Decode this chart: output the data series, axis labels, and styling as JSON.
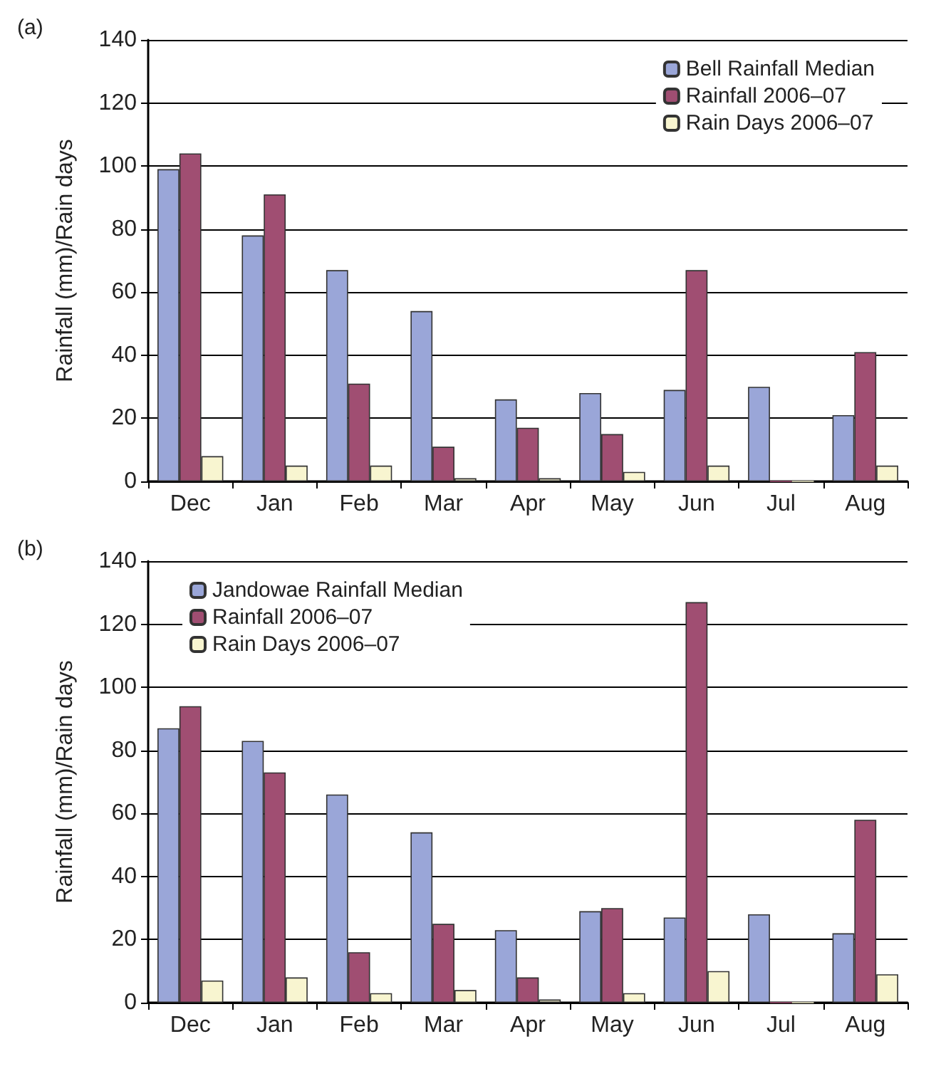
{
  "chart_data": [
    {
      "type": "bar",
      "annotations": [
        "(a)"
      ],
      "ylabel": "Rainfall (mm)/Rain days",
      "categories": [
        "Dec",
        "Jan",
        "Feb",
        "Mar",
        "Apr",
        "May",
        "Jun",
        "Jul",
        "Aug"
      ],
      "series": [
        {
          "name": "Bell Rainfall Median",
          "color": "#9aa6d8",
          "values": [
            99,
            78,
            67,
            54,
            26,
            28,
            29,
            30,
            21
          ]
        },
        {
          "name": "Rainfall 2006–07",
          "color": "#a04e72",
          "values": [
            104,
            91,
            31,
            11,
            17,
            15,
            67,
            0,
            41
          ]
        },
        {
          "name": "Rain Days 2006–07",
          "color": "#f8f5d0",
          "values": [
            8,
            5,
            5,
            1,
            1,
            3,
            5,
            0,
            5
          ]
        }
      ],
      "ylim": [
        0,
        140
      ],
      "yticks": [
        0,
        20,
        40,
        60,
        80,
        100,
        120,
        140
      ],
      "grid": "y",
      "legend": "top right"
    },
    {
      "type": "bar",
      "annotations": [
        "(b)"
      ],
      "ylabel": "Rainfall (mm)/Rain days",
      "categories": [
        "Dec",
        "Jan",
        "Feb",
        "Mar",
        "Apr",
        "May",
        "Jun",
        "Jul",
        "Aug"
      ],
      "series": [
        {
          "name": "Jandowae Rainfall Median",
          "color": "#9aa6d8",
          "values": [
            87,
            83,
            66,
            54,
            23,
            29,
            27,
            28,
            22
          ]
        },
        {
          "name": "Rainfall 2006–07",
          "color": "#a04e72",
          "values": [
            94,
            73,
            16,
            25,
            8,
            30,
            127,
            0,
            58
          ]
        },
        {
          "name": "Rain Days 2006–07",
          "color": "#f8f5d0",
          "values": [
            7,
            8,
            3,
            4,
            1,
            3,
            10,
            0,
            9
          ]
        }
      ],
      "ylim": [
        0,
        140
      ],
      "yticks": [
        0,
        20,
        40,
        60,
        80,
        100,
        120,
        140
      ],
      "grid": "y",
      "legend": "top left"
    }
  ]
}
